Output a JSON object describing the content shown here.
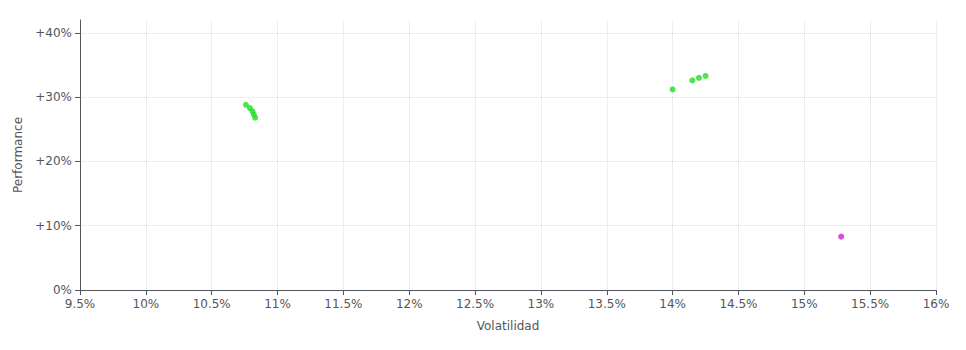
{
  "chart_data": {
    "type": "scatter",
    "xlabel": "Volatilidad",
    "ylabel": "Performance",
    "xlim": [
      0.095,
      0.16
    ],
    "ylim": [
      0.0,
      0.42
    ],
    "xticks": [
      {
        "value": 0.095,
        "label": "9.5%"
      },
      {
        "value": 0.1,
        "label": "10%"
      },
      {
        "value": 0.105,
        "label": "10.5%"
      },
      {
        "value": 0.11,
        "label": "11%"
      },
      {
        "value": 0.115,
        "label": "11.5%"
      },
      {
        "value": 0.12,
        "label": "12%"
      },
      {
        "value": 0.125,
        "label": "12.5%"
      },
      {
        "value": 0.13,
        "label": "13%"
      },
      {
        "value": 0.135,
        "label": "13.5%"
      },
      {
        "value": 0.14,
        "label": "14%"
      },
      {
        "value": 0.145,
        "label": "14.5%"
      },
      {
        "value": 0.15,
        "label": "15%"
      },
      {
        "value": 0.155,
        "label": "15.5%"
      },
      {
        "value": 0.16,
        "label": "16%"
      }
    ],
    "yticks": [
      {
        "value": 0.0,
        "label": "0%"
      },
      {
        "value": 0.1,
        "label": "+10%"
      },
      {
        "value": 0.2,
        "label": "+20%"
      },
      {
        "value": 0.3,
        "label": "+30%"
      },
      {
        "value": 0.4,
        "label": "+40%"
      }
    ],
    "grid": true,
    "series": [
      {
        "color": "#22dd22",
        "x": [
          0.1076,
          0.1079,
          0.1081,
          0.1082,
          0.1083,
          0.14,
          0.1415,
          0.142,
          0.1425
        ],
        "values": [
          0.288,
          0.283,
          0.278,
          0.273,
          0.268,
          0.312,
          0.326,
          0.33,
          0.333
        ]
      },
      {
        "color": "#cc22cc",
        "x": [
          0.1528
        ],
        "values": [
          0.083
        ]
      }
    ]
  }
}
